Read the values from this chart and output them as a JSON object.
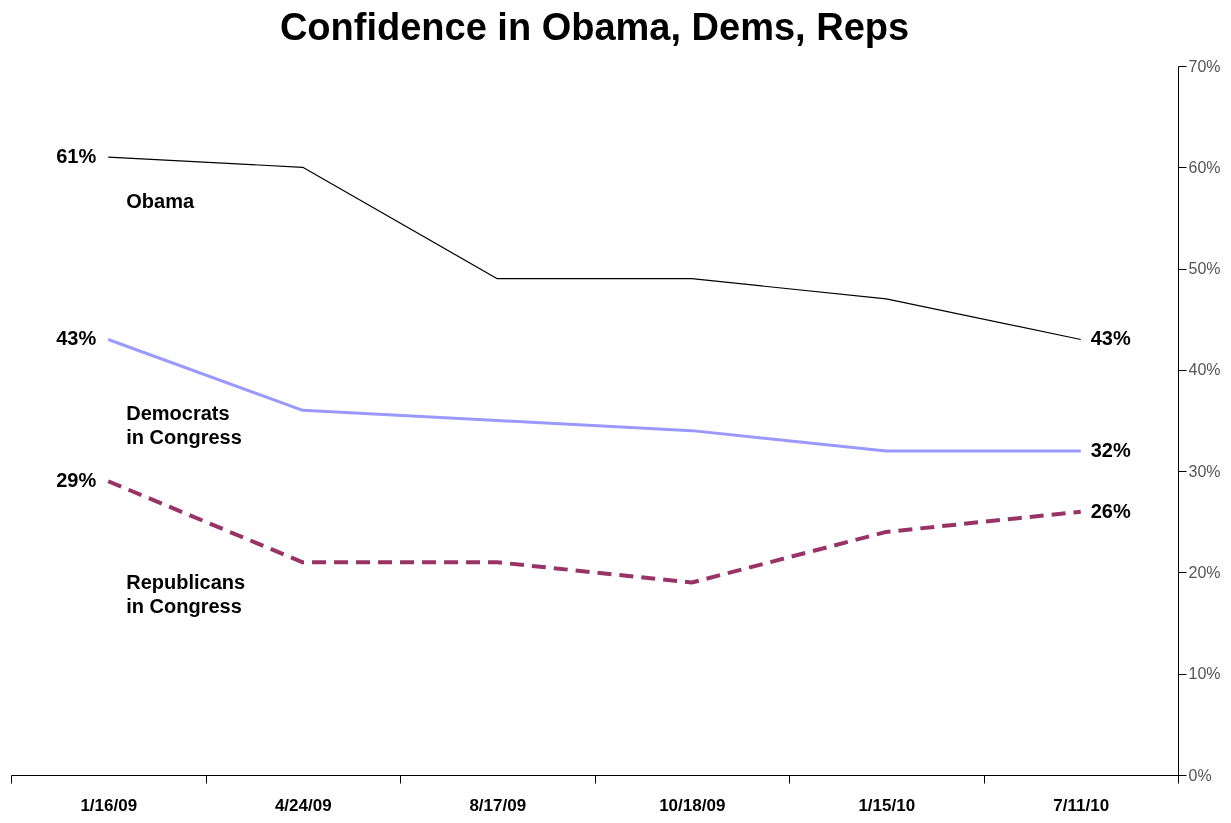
{
  "chart_data": {
    "type": "line",
    "title": "Confidence in Obama, Dems, Reps",
    "categories": [
      "1/16/09",
      "4/24/09",
      "8/17/09",
      "10/18/09",
      "1/15/10",
      "7/11/10"
    ],
    "series": [
      {
        "name": "Obama",
        "color": "#000000",
        "line_style": "solid",
        "values": [
          61,
          60,
          49,
          49,
          47,
          43
        ],
        "value_labels": [
          "61%",
          null,
          null,
          null,
          null,
          "43%"
        ]
      },
      {
        "name": "Democrats in Congress",
        "color": "#9999ff",
        "line_style": "solid",
        "values": [
          43,
          36,
          35,
          34,
          32,
          32
        ],
        "value_labels": [
          "43%",
          null,
          null,
          null,
          null,
          "32%"
        ]
      },
      {
        "name": "Republicans in Congress",
        "color": "#993366",
        "line_style": "dashed",
        "values": [
          29,
          21,
          21,
          19,
          24,
          26
        ],
        "value_labels": [
          "29%",
          null,
          null,
          null,
          null,
          "26%"
        ]
      }
    ],
    "ylim": [
      0,
      70
    ],
    "yticks": [
      {
        "value": 0,
        "label": "0%"
      },
      {
        "value": 10,
        "label": "10%"
      },
      {
        "value": 20,
        "label": "20%"
      },
      {
        "value": 30,
        "label": "30%"
      },
      {
        "value": 40,
        "label": "40%"
      },
      {
        "value": 50,
        "label": "50%"
      },
      {
        "value": 60,
        "label": "60%"
      },
      {
        "value": 70,
        "label": "70%"
      }
    ],
    "grid": false,
    "marker": "none"
  }
}
